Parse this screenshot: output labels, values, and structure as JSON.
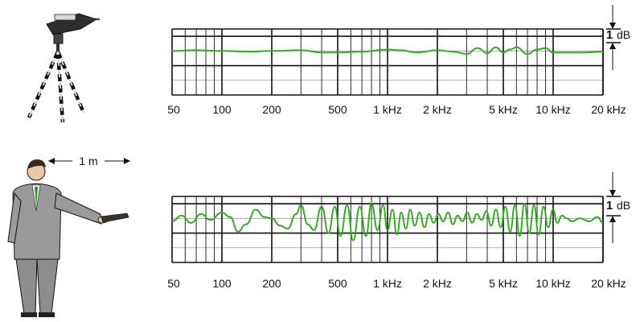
{
  "colors": {
    "curve": "#3aa62a",
    "frame": "#111111",
    "grid_light": "#9a9a9a"
  },
  "distance_label": "1 m",
  "chart_data": [
    {
      "type": "line",
      "name": "tripod-measurement",
      "xscale": "log",
      "xlim": [
        50,
        20000
      ],
      "ylim": [
        -3,
        1.5
      ],
      "grid": true,
      "tick_values": [
        50,
        100,
        200,
        500,
        1000,
        2000,
        5000,
        10000,
        20000
      ],
      "tick_labels": [
        "50",
        "100",
        "200",
        "500",
        "1 kHz",
        "2 kHz",
        "5 kHz",
        "10 kHz",
        "20 kHz"
      ],
      "scale_label": {
        "value": "1",
        "unit": "dB"
      },
      "x": [
        50,
        70,
        100,
        150,
        200,
        300,
        400,
        500,
        700,
        1000,
        1200,
        1500,
        2000,
        2500,
        3000,
        3500,
        4000,
        4500,
        5000,
        5500,
        6000,
        7000,
        8000,
        9000,
        10000,
        12000,
        15000,
        20000
      ],
      "y": [
        0,
        0.05,
        0,
        -0.05,
        0,
        0.05,
        -0.1,
        -0.1,
        -0.05,
        0.1,
        0.05,
        -0.1,
        0.05,
        -0.05,
        -0.2,
        0.2,
        -0.15,
        0.25,
        -0.1,
        0.1,
        0.25,
        -0.2,
        0.1,
        0.2,
        -0.1,
        -0.1,
        -0.1,
        -0.05
      ]
    },
    {
      "type": "line",
      "name": "handheld-measurement",
      "xscale": "log",
      "xlim": [
        50,
        20000
      ],
      "ylim": [
        -3,
        1.5
      ],
      "grid": true,
      "tick_values": [
        50,
        100,
        200,
        500,
        1000,
        2000,
        5000,
        10000,
        20000
      ],
      "tick_labels": [
        "50",
        "100",
        "200",
        "500",
        "1 kHz",
        "2 kHz",
        "5 kHz",
        "10 kHz",
        "20 kHz"
      ],
      "scale_label": {
        "value": "1",
        "unit": "dB"
      },
      "x": [
        50,
        57,
        65,
        75,
        85,
        100,
        112,
        125,
        140,
        160,
        180,
        200,
        225,
        250,
        280,
        300,
        330,
        360,
        400,
        440,
        480,
        520,
        570,
        620,
        680,
        740,
        800,
        870,
        940,
        1000,
        1070,
        1140,
        1210,
        1290,
        1370,
        1460,
        1560,
        1670,
        1780,
        1900,
        2030,
        2170,
        2320,
        2480,
        2650,
        2830,
        3030,
        3240,
        3460,
        3700,
        3950,
        4220,
        4510,
        4820,
        5150,
        5500,
        5880,
        6280,
        6710,
        7170,
        7660,
        8180,
        8740,
        9340,
        9980,
        10600,
        11300,
        12100,
        13000,
        14500,
        16500,
        18500,
        20000
      ],
      "y": [
        -0.2,
        0.2,
        -0.3,
        0.3,
        -0.1,
        0.4,
        0.1,
        -0.9,
        -0.4,
        0.6,
        0.1,
        0.0,
        -0.5,
        -0.7,
        0.3,
        0.9,
        -0.4,
        -0.8,
        0.8,
        -1.0,
        0.8,
        -1.2,
        0.9,
        -1.5,
        0.8,
        -1.2,
        1.0,
        -0.8,
        0.9,
        -0.8,
        0.6,
        -1.1,
        0.4,
        -0.7,
        0.6,
        -0.5,
        0.4,
        -0.6,
        0.3,
        -0.3,
        0.3,
        -0.2,
        0.4,
        -0.4,
        0.2,
        -0.2,
        0.4,
        -0.3,
        0.3,
        -0.1,
        0.5,
        -0.5,
        0.6,
        -0.6,
        0.8,
        -0.9,
        0.9,
        -1.2,
        1.0,
        -1.0,
        0.9,
        -1.1,
        0.8,
        -0.6,
        0.6,
        -0.3,
        0.2,
        0.0,
        -0.2,
        0.0,
        -0.2,
        0.1,
        -0.3
      ]
    }
  ]
}
